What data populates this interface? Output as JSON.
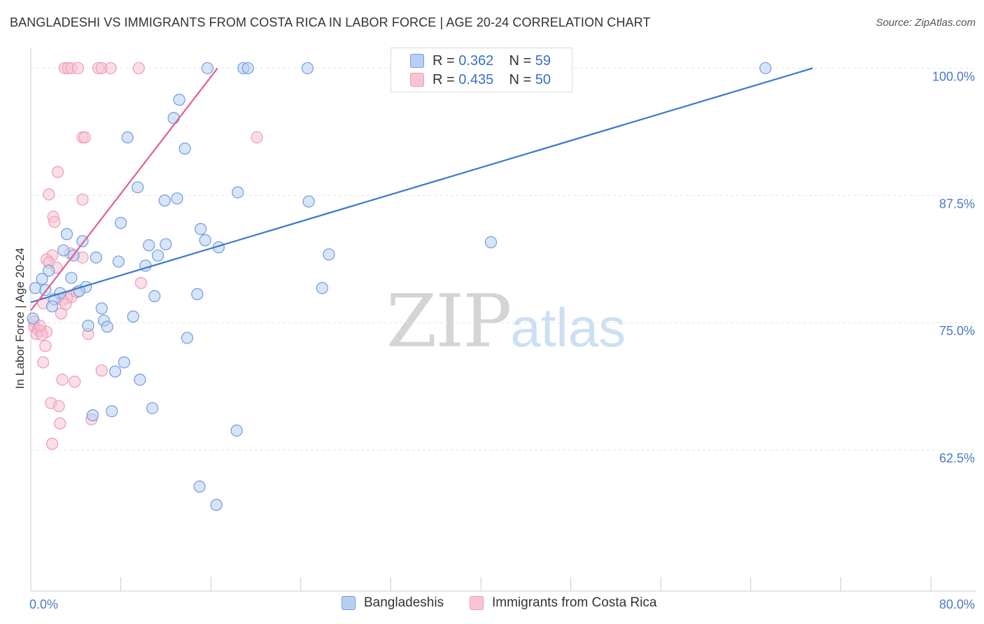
{
  "header": {
    "title": "BANGLADESHI VS IMMIGRANTS FROM COSTA RICA IN LABOR FORCE | AGE 20-24 CORRELATION CHART",
    "source": "Source: ZipAtlas.com"
  },
  "watermark": {
    "zip": "ZIP",
    "atlas": "atlas"
  },
  "legend": {
    "rows": [
      {
        "r_label": "R =",
        "r_value": "0.362",
        "n_label": "N =",
        "n_value": "59"
      },
      {
        "r_label": "R =",
        "r_value": "0.435",
        "n_label": "N =",
        "n_value": "50"
      }
    ]
  },
  "colors": {
    "blue_fill": "#b7cff2",
    "blue_stroke": "#6f9be0",
    "blue_line": "#3a78d0",
    "pink_fill": "#f8c4d4",
    "pink_stroke": "#ee9ab5",
    "pink_line": "#e0608e",
    "grid": "#e3e3e3",
    "tick_text": "#4a78c8"
  },
  "chart_data": {
    "type": "scatter",
    "title": "BANGLADESHI VS IMMIGRANTS FROM COSTA RICA IN LABOR FORCE | AGE 20-24 CORRELATION CHART",
    "xlabel": "",
    "ylabel": "In Labor Force | Age 20-24",
    "xlim": [
      0,
      80
    ],
    "ylim": [
      50,
      101.2
    ],
    "x_tick_labels": [
      "0.0%",
      "80.0%"
    ],
    "y_ticks": [
      62.5,
      75.0,
      87.5,
      100.0
    ],
    "y_tick_labels": [
      "62.5%",
      "75.0%",
      "87.5%",
      "100.0%"
    ],
    "series": [
      {
        "name": "Bangladeshis",
        "color": "#6f9be0",
        "r": 0.362,
        "n": 59,
        "trend": {
          "x": [
            0,
            69.5
          ],
          "y": [
            77.0,
            100.0
          ]
        },
        "points": [
          [
            15.7,
            100
          ],
          [
            18.9,
            100
          ],
          [
            19.3,
            100
          ],
          [
            24.6,
            100
          ],
          [
            65.3,
            100
          ],
          [
            13.2,
            96.9
          ],
          [
            12.7,
            95.1
          ],
          [
            8.6,
            93.2
          ],
          [
            13.7,
            92.1
          ],
          [
            9.5,
            88.3
          ],
          [
            18.4,
            87.8
          ],
          [
            11.9,
            87.0
          ],
          [
            13.0,
            87.2
          ],
          [
            24.7,
            86.9
          ],
          [
            8.0,
            84.8
          ],
          [
            15.1,
            84.2
          ],
          [
            3.2,
            83.7
          ],
          [
            4.6,
            83.0
          ],
          [
            15.5,
            83.1
          ],
          [
            10.5,
            82.6
          ],
          [
            12.0,
            82.7
          ],
          [
            16.7,
            82.4
          ],
          [
            40.9,
            82.9
          ],
          [
            2.9,
            82.1
          ],
          [
            26.5,
            81.7
          ],
          [
            3.8,
            81.6
          ],
          [
            5.8,
            81.4
          ],
          [
            7.8,
            81.0
          ],
          [
            11.3,
            81.6
          ],
          [
            10.2,
            80.6
          ],
          [
            1.6,
            80.1
          ],
          [
            3.6,
            79.4
          ],
          [
            1.0,
            79.3
          ],
          [
            0.4,
            78.4
          ],
          [
            1.3,
            78.2
          ],
          [
            4.9,
            78.5
          ],
          [
            4.3,
            78.1
          ],
          [
            2.6,
            77.9
          ],
          [
            25.9,
            78.4
          ],
          [
            11.0,
            77.6
          ],
          [
            14.8,
            77.8
          ],
          [
            2.1,
            77.3
          ],
          [
            1.9,
            76.6
          ],
          [
            6.3,
            76.4
          ],
          [
            9.1,
            75.6
          ],
          [
            6.5,
            75.2
          ],
          [
            0.2,
            75.4
          ],
          [
            5.1,
            74.7
          ],
          [
            6.8,
            74.6
          ],
          [
            13.9,
            73.5
          ],
          [
            8.3,
            71.1
          ],
          [
            7.5,
            70.2
          ],
          [
            9.7,
            69.4
          ],
          [
            7.2,
            66.3
          ],
          [
            10.8,
            66.6
          ],
          [
            5.5,
            65.9
          ],
          [
            18.3,
            64.4
          ],
          [
            15.0,
            58.9
          ],
          [
            16.5,
            57.1
          ]
        ]
      },
      {
        "name": "Immigrants from Costa Rica",
        "color": "#ee9ab5",
        "r": 0.435,
        "n": 50,
        "trend": {
          "x": [
            0,
            16.6
          ],
          "y": [
            76.2,
            100.0
          ]
        },
        "points": [
          [
            3.0,
            100
          ],
          [
            3.3,
            100
          ],
          [
            3.6,
            100
          ],
          [
            4.2,
            100
          ],
          [
            6.0,
            100
          ],
          [
            6.3,
            100
          ],
          [
            7.1,
            100
          ],
          [
            9.6,
            100
          ],
          [
            4.6,
            93.2
          ],
          [
            4.8,
            93.2
          ],
          [
            20.1,
            93.2
          ],
          [
            2.4,
            89.8
          ],
          [
            1.6,
            87.6
          ],
          [
            4.6,
            87.1
          ],
          [
            2.0,
            85.4
          ],
          [
            2.1,
            84.9
          ],
          [
            1.9,
            81.6
          ],
          [
            3.5,
            81.8
          ],
          [
            4.6,
            81.4
          ],
          [
            1.4,
            81.2
          ],
          [
            1.6,
            80.9
          ],
          [
            2.3,
            80.4
          ],
          [
            9.8,
            78.9
          ],
          [
            3.6,
            77.5
          ],
          [
            3.2,
            77.4
          ],
          [
            2.8,
            77.2
          ],
          [
            3.1,
            76.8
          ],
          [
            1.1,
            76.9
          ],
          [
            2.7,
            75.9
          ],
          [
            0.3,
            75.1
          ],
          [
            0.3,
            74.6
          ],
          [
            0.6,
            74.3
          ],
          [
            0.7,
            74.2
          ],
          [
            0.9,
            74.2
          ],
          [
            1.4,
            74.1
          ],
          [
            0.5,
            73.9
          ],
          [
            1.0,
            73.8
          ],
          [
            1.3,
            72.7
          ],
          [
            1.1,
            71.1
          ],
          [
            6.3,
            70.3
          ],
          [
            2.8,
            69.4
          ],
          [
            3.9,
            69.2
          ],
          [
            1.8,
            67.1
          ],
          [
            2.5,
            66.8
          ],
          [
            2.6,
            65.1
          ],
          [
            5.4,
            65.5
          ],
          [
            1.9,
            63.1
          ],
          [
            5.1,
            73.9
          ],
          [
            0.8,
            74.7
          ],
          [
            4.1,
            78.0
          ]
        ]
      }
    ]
  }
}
